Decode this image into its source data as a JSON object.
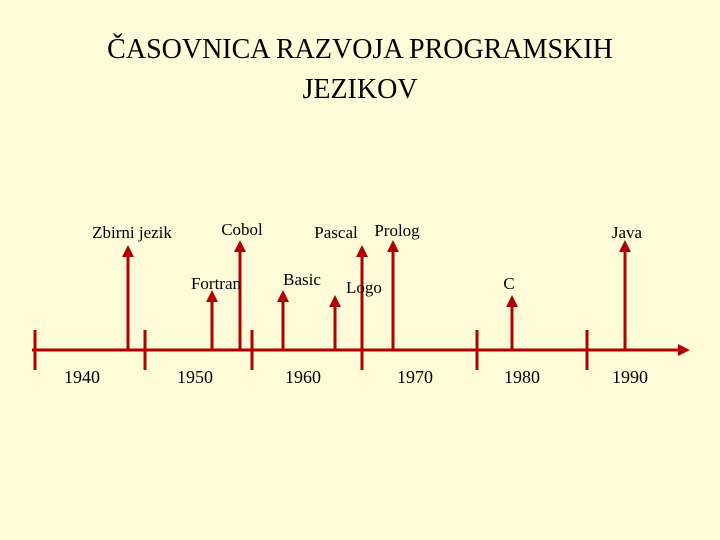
{
  "header": {
    "title_lines": [
      "ČASOVNICA RAZVOJA PROGRAMSKIH",
      "JEZIKOV"
    ]
  },
  "timeline": {
    "years": [
      "1940",
      "1950",
      "1960",
      "1970",
      "1980",
      "1990"
    ],
    "events": [
      {
        "label": "Zbirni jezik"
      },
      {
        "label": "Cobol"
      },
      {
        "label": "Fortran"
      },
      {
        "label": "Basic"
      },
      {
        "label": "Pascal"
      },
      {
        "label": "Prolog"
      },
      {
        "label": "Logo"
      },
      {
        "label": "C"
      },
      {
        "label": "Java"
      }
    ]
  }
}
